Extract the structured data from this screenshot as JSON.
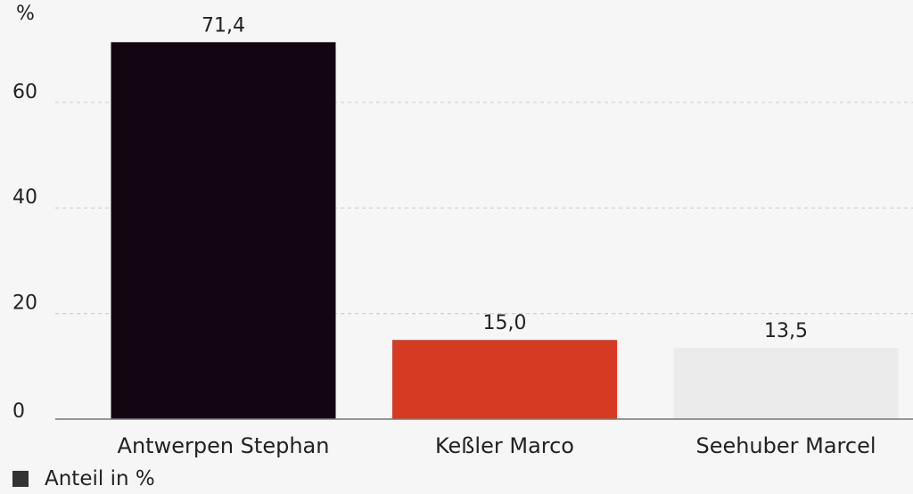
{
  "chart_data": {
    "type": "bar",
    "unit_label": "%",
    "categories": [
      "Antwerpen Stephan",
      "Keßler Marco",
      "Seehuber Marcel"
    ],
    "values": [
      71.4,
      15.0,
      13.5
    ],
    "value_labels": [
      "71,4",
      "15,0",
      "13,5"
    ],
    "bar_colors": [
      "#130512",
      "#d63a23",
      "#ebebeb"
    ],
    "yticks": [
      0,
      20,
      40,
      60
    ],
    "ylim": [
      0,
      80
    ],
    "grid": true,
    "legend": {
      "placement": "bottom-left",
      "label": "Anteil in %",
      "color": "#333333"
    }
  }
}
